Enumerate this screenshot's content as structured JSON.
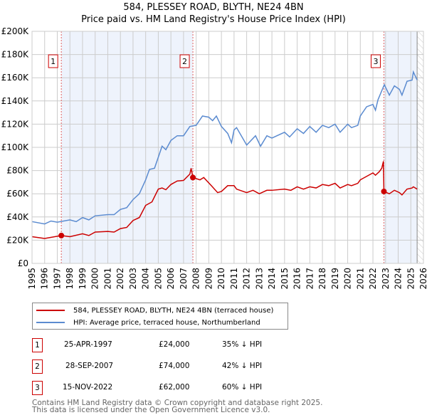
{
  "title": "584, PLESSEY ROAD, BLYTH, NE24 4BN",
  "subtitle": "Price paid vs. HM Land Registry's House Price Index (HPI)",
  "colors": {
    "property": "#cc0000",
    "hpi": "#5b8bd0",
    "shade": "#eef3fc"
  },
  "chart_data": {
    "type": "line",
    "xlim": [
      1995,
      2026
    ],
    "ylim": [
      0,
      200000
    ],
    "yticks": [
      "£0",
      "£20K",
      "£40K",
      "£60K",
      "£80K",
      "£100K",
      "£120K",
      "£140K",
      "£160K",
      "£180K",
      "£200K"
    ],
    "xticks": [
      "1995",
      "1996",
      "1997",
      "1998",
      "1999",
      "2000",
      "2001",
      "2002",
      "2003",
      "2004",
      "2005",
      "2006",
      "2007",
      "2008",
      "2009",
      "2010",
      "2011",
      "2012",
      "2013",
      "2014",
      "2015",
      "2016",
      "2017",
      "2018",
      "2019",
      "2020",
      "2021",
      "2022",
      "2023",
      "2024",
      "2025",
      "2026"
    ],
    "series": [
      {
        "name": "584, PLESSEY ROAD, BLYTH, NE24 4BN (terraced house)",
        "color": "#cc0000",
        "x": [
          1995,
          1996,
          1997.32,
          1998,
          1999,
          1999.5,
          2000,
          2001,
          2001.5,
          2002,
          2002.5,
          2003,
          2003.5,
          2004,
          2004.5,
          2005,
          2005.3,
          2005.6,
          2006,
          2006.5,
          2007,
          2007.5,
          2007.6,
          2007.74,
          2008.3,
          2008.6,
          2009.2,
          2009.7,
          2010,
          2010.5,
          2011,
          2011.2,
          2012,
          2012.5,
          2013,
          2013.6,
          2014,
          2015,
          2015.5,
          2016,
          2016.5,
          2017,
          2017.5,
          2018,
          2018.5,
          2019,
          2019.4,
          2020,
          2020.3,
          2020.8,
          2021,
          2021.5,
          2022,
          2022.2,
          2022.5,
          2022.7,
          2022.83,
          2022.87,
          2023.3,
          2023.7,
          2024.1,
          2024.3,
          2024.7,
          2025.1,
          2025.2,
          2025.5
        ],
        "y": [
          23000,
          21500,
          24000,
          23000,
          25500,
          24000,
          27000,
          27500,
          27000,
          30000,
          31000,
          37000,
          39500,
          50000,
          53000,
          64000,
          65000,
          63500,
          68000,
          71000,
          71500,
          77000,
          82000,
          74000,
          72000,
          74000,
          67000,
          61000,
          62000,
          67000,
          67000,
          64000,
          61000,
          63000,
          60000,
          63000,
          63000,
          64000,
          63000,
          66000,
          64000,
          66000,
          65000,
          68000,
          67000,
          69000,
          65000,
          68000,
          67000,
          69000,
          72000,
          75000,
          78000,
          76000,
          79000,
          82000,
          88000,
          62000,
          60000,
          63000,
          61000,
          59000,
          64000,
          65000,
          66000,
          64000
        ]
      },
      {
        "name": "HPI: Average price, terraced house, Northumberland",
        "color": "#5b8bd0",
        "x": [
          1995,
          1996,
          1996.5,
          1997,
          1998,
          1998.5,
          1999,
          1999.5,
          2000,
          2001,
          2001.5,
          2002,
          2002.5,
          2003,
          2003.5,
          2004,
          2004.3,
          2004.7,
          2005.3,
          2005.6,
          2006,
          2006.5,
          2007,
          2007.5,
          2008,
          2008.5,
          2009,
          2009.3,
          2009.6,
          2010,
          2010.5,
          2010.8,
          2011,
          2011.2,
          2012,
          2012.7,
          2013.1,
          2013.6,
          2014,
          2015,
          2015.4,
          2016,
          2016.5,
          2017,
          2017.5,
          2018,
          2018.5,
          2019,
          2019.4,
          2020,
          2020.3,
          2020.8,
          2021,
          2021.5,
          2022,
          2022.2,
          2022.4,
          2022.9,
          2023.3,
          2023.7,
          2024.1,
          2024.3,
          2024.7,
          2025.1,
          2025.2,
          2025.5
        ],
        "y": [
          36000,
          34000,
          36500,
          35500,
          37500,
          36000,
          39500,
          37500,
          41000,
          42000,
          42000,
          46500,
          48000,
          55000,
          60000,
          72000,
          81000,
          82000,
          101000,
          98000,
          106000,
          110000,
          110000,
          118000,
          119000,
          127000,
          126000,
          123000,
          127000,
          118000,
          112000,
          104000,
          115000,
          117000,
          102000,
          110000,
          101000,
          110000,
          108000,
          113000,
          109000,
          116000,
          112000,
          118000,
          113000,
          119000,
          117000,
          120000,
          113000,
          120000,
          117000,
          119000,
          127000,
          135000,
          137000,
          132000,
          141000,
          154000,
          145000,
          153000,
          150000,
          145000,
          157000,
          158000,
          165000,
          158000
        ]
      }
    ],
    "sales": [
      {
        "label": "1",
        "x": 1997.32,
        "y": 24000
      },
      {
        "label": "2",
        "x": 2007.74,
        "y": 74000
      },
      {
        "label": "3",
        "x": 2022.87,
        "y": 62000
      }
    ]
  },
  "legend": {
    "property": "584, PLESSEY ROAD, BLYTH, NE24 4BN (terraced house)",
    "hpi": "HPI: Average price, terraced house, Northumberland"
  },
  "transactions": [
    {
      "num": "1",
      "date": "25-APR-1997",
      "price": "£24,000",
      "hpi": "35% ↓ HPI"
    },
    {
      "num": "2",
      "date": "28-SEP-2007",
      "price": "£74,000",
      "hpi": "42% ↓ HPI"
    },
    {
      "num": "3",
      "date": "15-NOV-2022",
      "price": "£62,000",
      "hpi": "60% ↓ HPI"
    }
  ],
  "footer": {
    "line1": "Contains HM Land Registry data © Crown copyright and database right 2025.",
    "line2": "This data is licensed under the Open Government Licence v3.0."
  }
}
